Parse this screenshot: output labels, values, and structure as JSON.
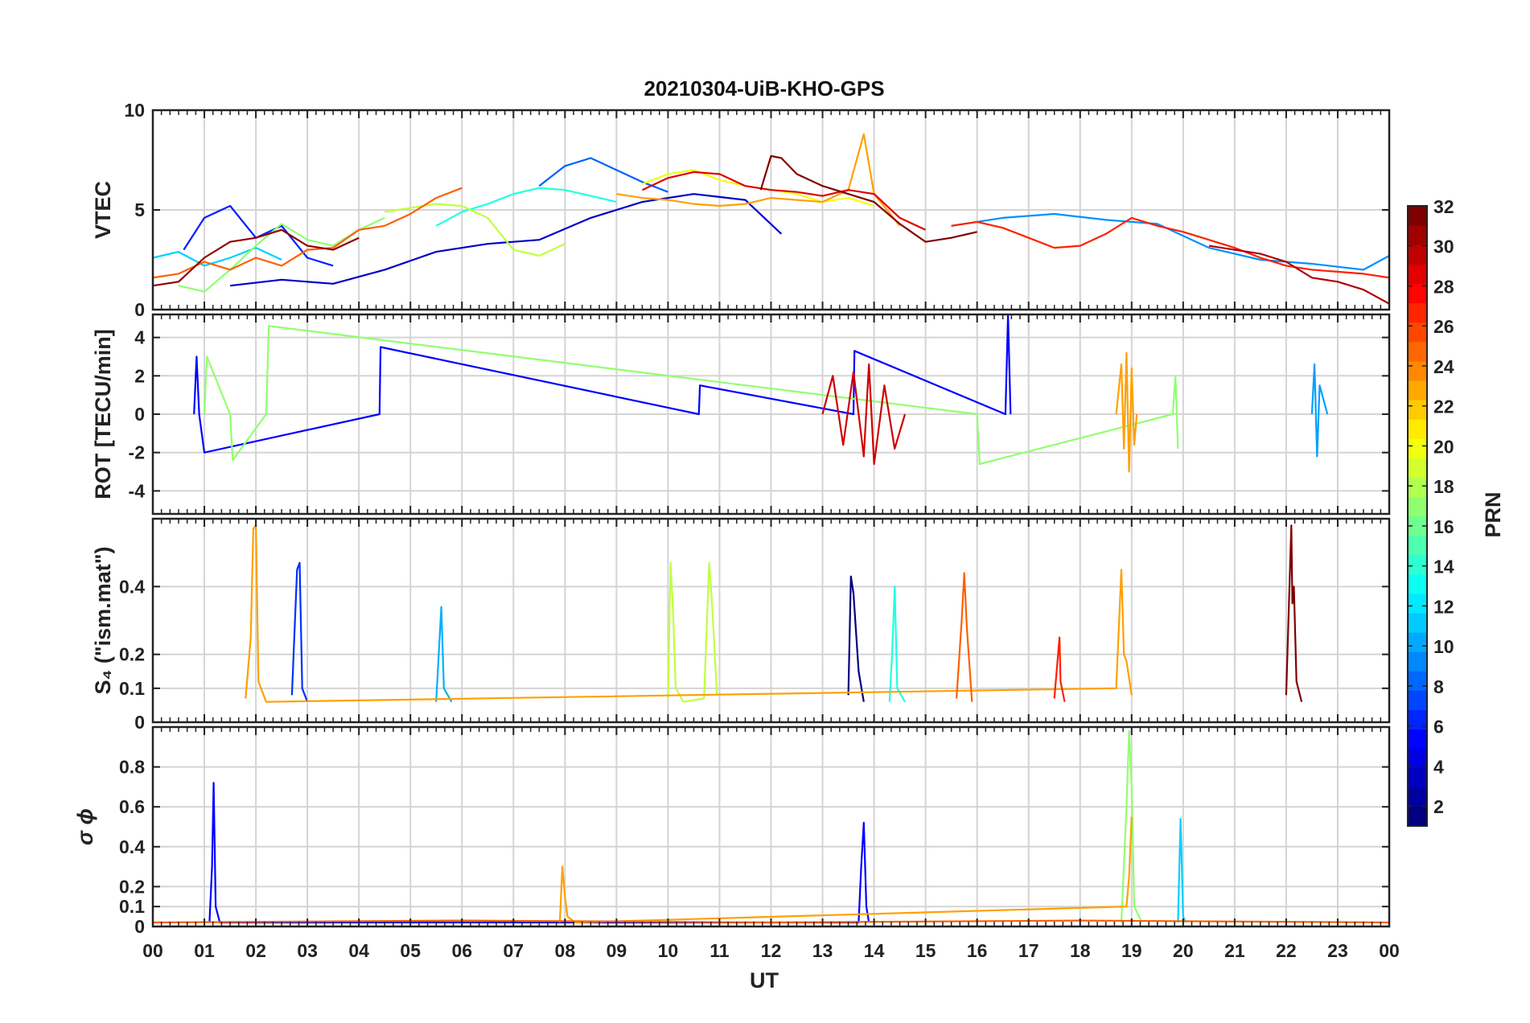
{
  "chart_data": {
    "type": "line",
    "title": "20210304-UiB-KHO-GPS",
    "xlabel": "UT",
    "xlim": [
      0,
      24
    ],
    "x_tick_labels": [
      "00",
      "01",
      "02",
      "03",
      "04",
      "05",
      "06",
      "07",
      "08",
      "09",
      "10",
      "11",
      "12",
      "13",
      "14",
      "15",
      "16",
      "17",
      "18",
      "19",
      "20",
      "21",
      "22",
      "23",
      "00"
    ],
    "grid": true,
    "colorbar": {
      "label": "PRN",
      "range": [
        1,
        32
      ],
      "colormap": "jet",
      "tick_labels": [
        "2",
        "4",
        "6",
        "8",
        "10",
        "12",
        "14",
        "16",
        "18",
        "20",
        "22",
        "24",
        "26",
        "28",
        "30",
        "32"
      ],
      "placement": "right"
    },
    "panels": [
      {
        "name": "vtec",
        "ylabel": "VTEC",
        "ylim": [
          0,
          10
        ],
        "y_ticks": [
          0,
          5,
          10
        ],
        "y_tick_labels": [
          "0",
          "5",
          "10"
        ],
        "series": [
          {
            "prn": 2,
            "color": "#0000c8",
            "x": [
              1.5,
              2.5,
              3.5,
              4.5,
              5.5,
              6.5,
              7.5,
              8.5,
              9.5,
              10.5,
              11.5,
              12.2
            ],
            "values": [
              1.2,
              1.5,
              1.3,
              2.0,
              2.9,
              3.3,
              3.5,
              4.6,
              5.4,
              5.8,
              5.5,
              3.8
            ]
          },
          {
            "prn": 4,
            "color": "#0020ff",
            "x": [
              0.6,
              1.0,
              1.5,
              2.0,
              2.5,
              3.0,
              3.5
            ],
            "values": [
              3.0,
              4.6,
              5.2,
              3.6,
              4.2,
              2.6,
              2.2
            ]
          },
          {
            "prn": 6,
            "color": "#0060ff",
            "x": [
              7.5,
              8.0,
              8.5,
              9.0,
              9.5,
              10.0
            ],
            "values": [
              6.2,
              7.2,
              7.6,
              7.0,
              6.4,
              5.9
            ]
          },
          {
            "prn": 8,
            "color": "#0090ff",
            "x": [
              15.5,
              16.5,
              17.5,
              18.5,
              19.5,
              20.5,
              21.5,
              22.5,
              23.5,
              24.0
            ],
            "values": [
              4.2,
              4.6,
              4.8,
              4.5,
              4.3,
              3.1,
              2.5,
              2.3,
              2.0,
              2.7
            ]
          },
          {
            "prn": 12,
            "color": "#00d0ff",
            "x": [
              0.0,
              0.5,
              1.0,
              1.5,
              2.0,
              2.5
            ],
            "values": [
              2.6,
              2.9,
              2.2,
              2.6,
              3.1,
              2.5
            ]
          },
          {
            "prn": 14,
            "color": "#20ffdf",
            "x": [
              5.5,
              6.0,
              6.5,
              7.0,
              7.5,
              8.0,
              8.5,
              9.0
            ],
            "values": [
              4.2,
              4.9,
              5.3,
              5.8,
              6.1,
              6.0,
              5.7,
              5.4
            ]
          },
          {
            "prn": 17,
            "color": "#90ff6f",
            "x": [
              0.5,
              1.0,
              1.5,
              2.0,
              2.5,
              3.0,
              3.5,
              4.0,
              4.5
            ],
            "values": [
              1.2,
              0.9,
              2.0,
              3.2,
              4.3,
              3.5,
              3.2,
              4.0,
              4.6
            ]
          },
          {
            "prn": 18,
            "color": "#c0ff3f",
            "x": [
              4.5,
              5.0,
              5.5,
              6.0,
              6.5,
              7.0,
              7.5,
              8.0
            ],
            "values": [
              4.9,
              5.1,
              5.3,
              5.2,
              4.6,
              3.0,
              2.7,
              3.3
            ]
          },
          {
            "prn": 20,
            "color": "#f0ff0f",
            "x": [
              9.5,
              10.0,
              10.5,
              11.0,
              11.5,
              12.0,
              12.5,
              13.0,
              13.5,
              14.0
            ],
            "values": [
              6.3,
              6.8,
              7.0,
              6.5,
              6.2,
              6.0,
              5.8,
              5.4,
              5.6,
              5.2
            ]
          },
          {
            "prn": 22,
            "color": "#ffa000",
            "x": [
              9.0,
              9.5,
              10.0,
              10.5,
              11.0,
              11.5,
              12.0,
              12.5,
              13.0,
              13.5,
              13.8,
              14.0,
              14.5
            ],
            "values": [
              5.8,
              5.6,
              5.5,
              5.3,
              5.2,
              5.3,
              5.6,
              5.5,
              5.4,
              6.0,
              8.8,
              5.8,
              4.2
            ]
          },
          {
            "prn": 25,
            "color": "#ff6000",
            "x": [
              0.0,
              0.5,
              1.0,
              1.5,
              2.0,
              2.5,
              3.0,
              3.5,
              4.0,
              4.5,
              5.0,
              5.5,
              6.0
            ],
            "values": [
              1.6,
              1.8,
              2.4,
              2.0,
              2.6,
              2.2,
              3.0,
              3.1,
              4.0,
              4.2,
              4.8,
              5.6,
              6.1
            ]
          },
          {
            "prn": 27,
            "color": "#ff2000",
            "x": [
              15.5,
              16.0,
              16.5,
              17.0,
              17.5,
              18.0,
              18.5,
              19.0,
              19.5,
              20.0,
              20.5,
              21.0,
              21.5,
              22.0,
              22.5,
              23.0,
              23.5,
              24.0
            ],
            "values": [
              4.2,
              4.4,
              4.1,
              3.6,
              3.1,
              3.2,
              3.8,
              4.6,
              4.2,
              3.9,
              3.5,
              3.1,
              2.6,
              2.2,
              2.0,
              1.9,
              1.8,
              1.6
            ]
          },
          {
            "prn": 29,
            "color": "#e00000",
            "x": [
              9.5,
              10.0,
              10.5,
              11.0,
              11.5,
              12.0,
              12.5,
              13.0,
              13.5,
              14.0,
              14.5,
              15.0
            ],
            "values": [
              6.0,
              6.6,
              6.9,
              6.8,
              6.2,
              6.0,
              5.9,
              5.7,
              6.0,
              5.8,
              4.6,
              4.0
            ]
          },
          {
            "prn": 31,
            "color": "#900000",
            "x": [
              0.0,
              0.5,
              1.0,
              1.5,
              2.0,
              2.5,
              3.0,
              3.5,
              4.0
            ],
            "values": [
              1.2,
              1.4,
              2.6,
              3.4,
              3.6,
              4.0,
              3.2,
              3.0,
              3.6
            ]
          },
          {
            "prn": 32,
            "color": "#800000",
            "x": [
              11.8,
              12.0,
              12.2,
              12.5,
              13.0,
              13.5,
              14.0,
              14.5,
              15.0,
              15.5,
              16.0
            ],
            "values": [
              6.0,
              7.7,
              7.6,
              6.8,
              6.2,
              5.8,
              5.4,
              4.3,
              3.4,
              3.6,
              3.9
            ]
          },
          {
            "prn": 30,
            "color": "#b00000",
            "x": [
              20.5,
              21.0,
              21.5,
              22.0,
              22.5,
              23.0,
              23.5,
              24.0
            ],
            "values": [
              3.2,
              3.0,
              2.8,
              2.4,
              1.6,
              1.4,
              1.0,
              0.3
            ]
          }
        ]
      },
      {
        "name": "rot",
        "ylabel": "ROT [TECU/min]",
        "ylim": [
          -5.2,
          5.2
        ],
        "y_ticks": [
          -4,
          -2,
          0,
          2,
          4
        ],
        "y_tick_labels": [
          "-4",
          "-2",
          "0",
          "2",
          "4"
        ],
        "series": [
          {
            "prn": 3,
            "color": "#0000ff",
            "x": [
              0.8,
              0.85,
              0.9,
              1.0,
              4.4,
              4.42,
              10.6,
              10.62,
              13.6,
              13.62,
              16.55,
              16.6,
              16.65
            ],
            "values": [
              0,
              3.0,
              0,
              -2.0,
              0,
              3.5,
              0,
              1.5,
              0,
              3.3,
              0,
              5.2,
              0
            ]
          },
          {
            "prn": 10,
            "color": "#00a0ff",
            "x": [
              22.5,
              22.55,
              22.6,
              22.65,
              22.8
            ],
            "values": [
              0,
              2.6,
              -2.2,
              1.5,
              0
            ]
          },
          {
            "prn": 17,
            "color": "#90ff6f",
            "x": [
              1.0,
              1.05,
              1.5,
              1.55,
              2.2,
              2.25,
              16.0,
              16.05,
              19.8,
              19.85,
              19.9
            ],
            "values": [
              0,
              3.0,
              0,
              -2.4,
              0,
              4.6,
              0,
              -2.6,
              0,
              2.0,
              -1.8
            ]
          },
          {
            "prn": 22,
            "color": "#ffa000",
            "x": [
              18.7,
              18.8,
              18.85,
              18.9,
              18.95,
              19.0,
              19.05,
              19.1
            ],
            "values": [
              0,
              2.6,
              -1.8,
              3.2,
              -3.0,
              2.4,
              -1.6,
              0
            ]
          },
          {
            "prn": 28,
            "color": "#d00000",
            "x": [
              13.0,
              13.2,
              13.4,
              13.6,
              13.8,
              13.9,
              14.0,
              14.2,
              14.4,
              14.6
            ],
            "values": [
              0,
              2.0,
              -1.6,
              2.2,
              -2.2,
              2.6,
              -2.6,
              1.5,
              -1.8,
              0
            ]
          }
        ]
      },
      {
        "name": "s4",
        "ylabel": "S₄ (\"ism.mat\")",
        "ylim": [
          0,
          0.6
        ],
        "y_ticks": [
          0,
          0.1,
          0.2,
          0.4
        ],
        "y_tick_labels": [
          "0",
          "0.1",
          "0.2",
          "0.4"
        ],
        "series": [
          {
            "prn": 1,
            "color": "#000080",
            "x": [
              13.5,
              13.55,
              13.6,
              13.7,
              13.8
            ],
            "values": [
              0.08,
              0.43,
              0.38,
              0.15,
              0.06
            ]
          },
          {
            "prn": 4,
            "color": "#0030ff",
            "x": [
              2.7,
              2.8,
              2.85,
              2.9,
              3.0
            ],
            "values": [
              0.08,
              0.45,
              0.47,
              0.1,
              0.06
            ]
          },
          {
            "prn": 11,
            "color": "#00b0ff",
            "x": [
              5.5,
              5.55,
              5.6,
              5.65,
              5.8
            ],
            "values": [
              0.06,
              0.2,
              0.34,
              0.1,
              0.06
            ]
          },
          {
            "prn": 14,
            "color": "#20ffdf",
            "x": [
              14.3,
              14.35,
              14.4,
              14.45,
              14.6
            ],
            "values": [
              0.06,
              0.2,
              0.4,
              0.1,
              0.06
            ]
          },
          {
            "prn": 18,
            "color": "#c0ff3f",
            "x": [
              10.0,
              10.05,
              10.1,
              10.15,
              10.3,
              10.7,
              10.8,
              10.85,
              10.95
            ],
            "values": [
              0.07,
              0.47,
              0.32,
              0.1,
              0.06,
              0.07,
              0.47,
              0.36,
              0.08
            ]
          },
          {
            "prn": 22,
            "color": "#ffa000",
            "x": [
              1.8,
              1.9,
              1.95,
              2.0,
              2.05,
              2.2,
              18.7,
              18.8,
              18.85,
              18.9,
              19.0
            ],
            "values": [
              0.07,
              0.25,
              0.57,
              0.58,
              0.12,
              0.06,
              0.1,
              0.45,
              0.2,
              0.18,
              0.08
            ]
          },
          {
            "prn": 25,
            "color": "#ff6000",
            "x": [
              15.6,
              15.7,
              15.75,
              15.8,
              15.9
            ],
            "values": [
              0.07,
              0.3,
              0.44,
              0.28,
              0.06
            ]
          },
          {
            "prn": 27,
            "color": "#ff2000",
            "x": [
              17.5,
              17.6,
              17.62,
              17.7
            ],
            "values": [
              0.07,
              0.25,
              0.12,
              0.06
            ]
          },
          {
            "prn": 32,
            "color": "#800000",
            "x": [
              22.0,
              22.1,
              22.12,
              22.15,
              22.2,
              22.3
            ],
            "values": [
              0.08,
              0.58,
              0.35,
              0.4,
              0.12,
              0.06
            ]
          }
        ]
      },
      {
        "name": "sigma_phi",
        "ylabel": "σ ϕ",
        "ylim": [
          0,
          1.0
        ],
        "y_ticks": [
          0,
          0.1,
          0.2,
          0.4,
          0.6,
          0.8
        ],
        "y_tick_labels": [
          "0",
          "0.1",
          "0.2",
          "0.4",
          "0.6",
          "0.8"
        ],
        "series": [
          {
            "prn": 3,
            "color": "#0000ff",
            "x": [
              1.1,
              1.15,
              1.18,
              1.22,
              1.3,
              13.7,
              13.75,
              13.8,
              13.85,
              13.9
            ],
            "values": [
              0.02,
              0.3,
              0.72,
              0.1,
              0.02,
              0.02,
              0.3,
              0.52,
              0.1,
              0.02
            ]
          },
          {
            "prn": 12,
            "color": "#00d0ff",
            "x": [
              19.9,
              19.95,
              20.0,
              20.05
            ],
            "values": [
              0.02,
              0.54,
              0.05,
              0.02
            ]
          },
          {
            "prn": 17,
            "color": "#90ff6f",
            "x": [
              18.8,
              18.9,
              18.95,
              19.0,
              19.05,
              19.2
            ],
            "values": [
              0.02,
              0.6,
              0.98,
              0.7,
              0.1,
              0.02
            ]
          },
          {
            "prn": 22,
            "color": "#ffa000",
            "x": [
              7.9,
              7.95,
              8.0,
              8.05,
              8.2,
              18.9,
              18.95,
              19.0
            ],
            "values": [
              0.02,
              0.3,
              0.15,
              0.05,
              0.02,
              0.1,
              0.25,
              0.55
            ]
          },
          {
            "prn": 25,
            "color": "#ff6000",
            "x": [
              0.0,
              6.0,
              12.0,
              18.0,
              24.0
            ],
            "values": [
              0.02,
              0.03,
              0.02,
              0.03,
              0.02
            ]
          }
        ]
      }
    ]
  }
}
